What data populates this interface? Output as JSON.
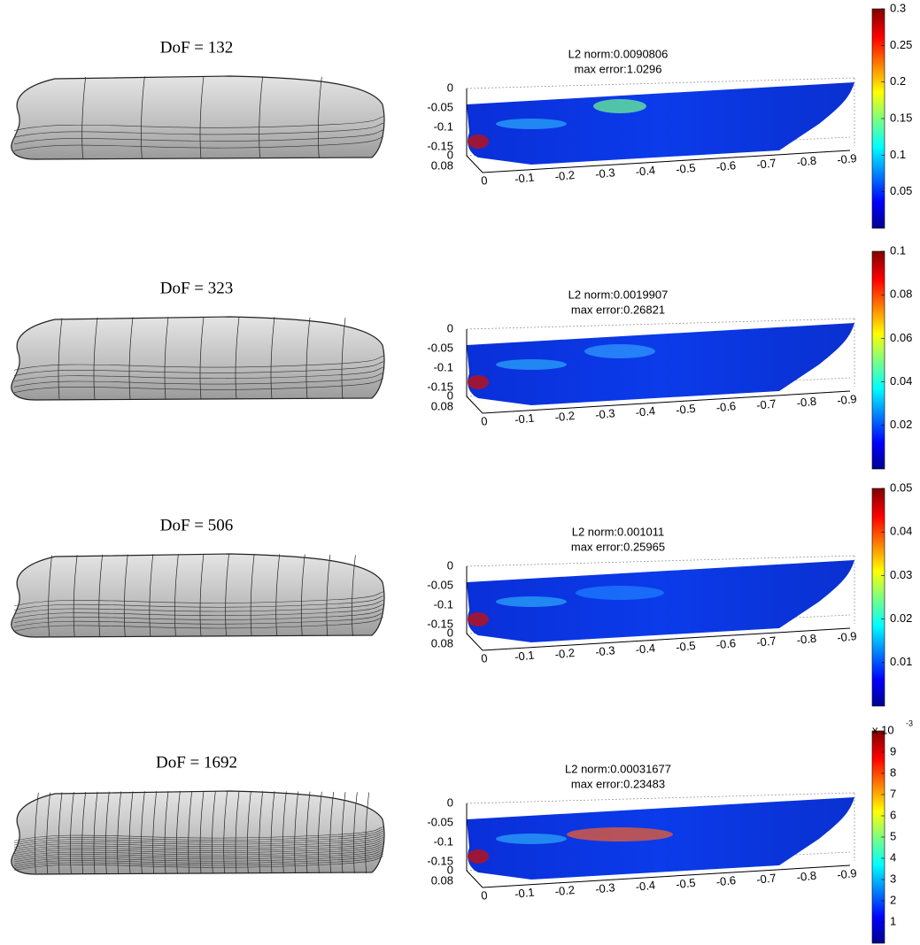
{
  "rows": [
    {
      "dof_label": "DoF = 132",
      "l2_norm": "L2 norm:0.0090806",
      "max_error": "max error:1.0296",
      "colorbar_ticks": [
        "0.05",
        "0.1",
        "0.15",
        "0.2",
        "0.25",
        "0.3"
      ]
    },
    {
      "dof_label": "DoF = 323",
      "l2_norm": "L2 norm:0.0019907",
      "max_error": "max error:0.26821",
      "colorbar_ticks": [
        "0.02",
        "0.04",
        "0.06",
        "0.08",
        "0.1"
      ]
    },
    {
      "dof_label": "DoF = 506",
      "l2_norm": "L2 norm:0.001011",
      "max_error": "max error:0.25965",
      "colorbar_ticks": [
        "0.01",
        "0.02",
        "0.03",
        "0.04",
        "0.05"
      ]
    },
    {
      "dof_label": "DoF = 1692",
      "l2_norm": "L2 norm:0.00031677",
      "max_error": "max error:0.23483",
      "colorbar_ticks": [
        "1",
        "2",
        "3",
        "4",
        "5",
        "6",
        "7",
        "8",
        "9"
      ],
      "colorbar_exponent": "x 10",
      "colorbar_exponent_power": "-3"
    }
  ],
  "z_ticks": [
    "0",
    "-0.05",
    "-0.1",
    "-0.15"
  ],
  "y_ticks": [
    "0",
    "0.08"
  ],
  "x_ticks": [
    "0",
    "-0.1",
    "-0.2",
    "-0.3",
    "-0.4",
    "-0.5",
    "-0.6",
    "-0.7",
    "-0.8",
    "-0.9"
  ]
}
